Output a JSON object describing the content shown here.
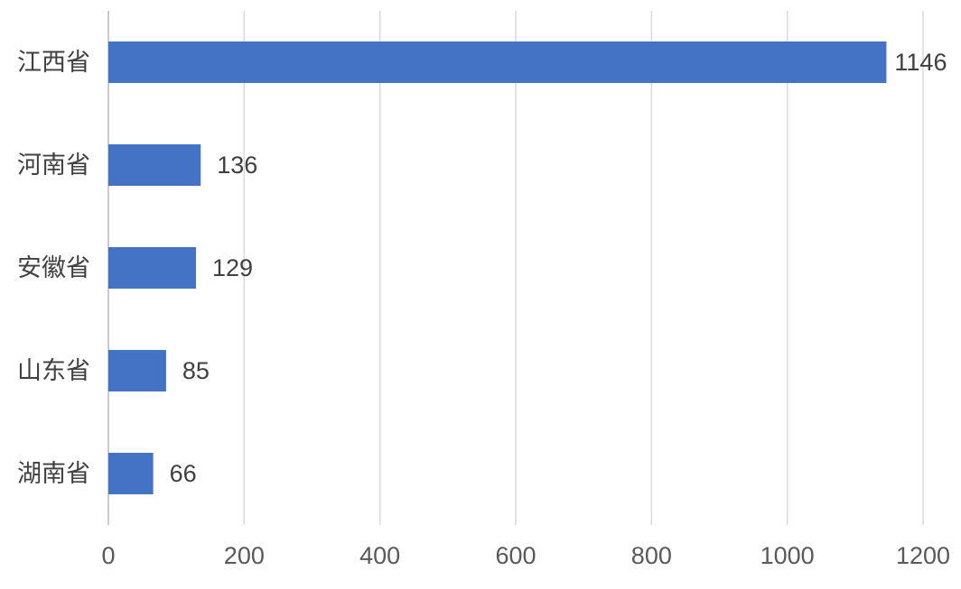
{
  "chart_data": {
    "type": "barh",
    "categories": [
      "江西省",
      "河南省",
      "安徽省",
      "山东省",
      "湖南省"
    ],
    "values": [
      1146,
      136,
      129,
      85,
      66
    ],
    "color": "#4472c4",
    "xlim": [
      0,
      1200
    ],
    "xticks": [
      0,
      200,
      400,
      600,
      800,
      1000,
      1200
    ],
    "grid": true,
    "data_labels": true
  }
}
